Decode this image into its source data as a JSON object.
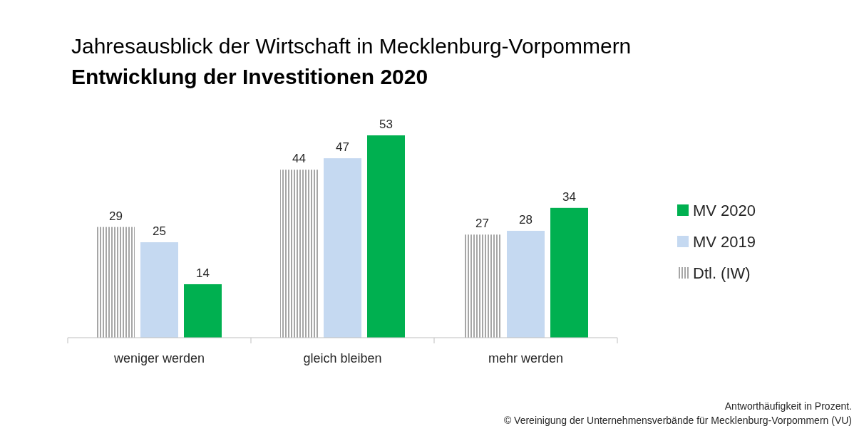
{
  "chart_data": {
    "type": "bar",
    "title": "Jahresausblick der Wirtschaft in Mecklenburg-Vorpommern",
    "subtitle": "Entwicklung der Investitionen 2020",
    "categories": [
      "weniger werden",
      "gleich bleiben",
      "mehr werden"
    ],
    "series": [
      {
        "name": "Dtl. (IW)",
        "color": "#a6a6a6",
        "values": [
          29,
          44,
          27
        ]
      },
      {
        "name": "MV 2019",
        "color": "#c5d9f1",
        "values": [
          25,
          47,
          28
        ]
      },
      {
        "name": "MV 2020",
        "color": "#00b050",
        "values": [
          14,
          53,
          34
        ]
      }
    ],
    "data_labels": true,
    "legend": "right",
    "grid": false,
    "annotations": [
      "Antworthäufigkeit in Prozent.",
      "© Vereinigung der Unternehmensverbände für Mecklenburg-Vorpommern (VU)"
    ]
  }
}
